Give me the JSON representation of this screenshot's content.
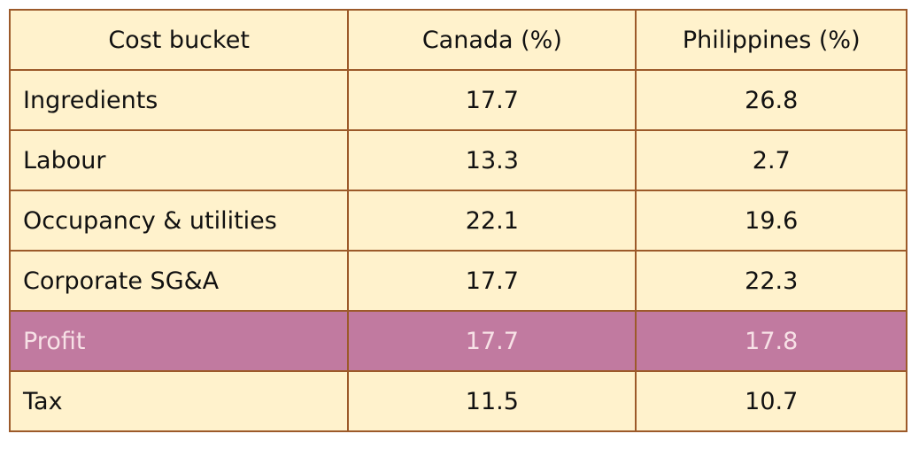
{
  "table": {
    "header": [
      "Cost bucket",
      "Canada (%)",
      "Philippines (%)"
    ],
    "rows": [
      [
        "Ingredients",
        17.7,
        26.8
      ],
      [
        "Labour",
        13.3,
        2.7
      ],
      [
        "Occupancy & utilities",
        22.1,
        19.6
      ],
      [
        "Corporate SG&A",
        17.7,
        22.3
      ],
      [
        "Profit",
        17.7,
        17.8
      ],
      [
        "Tax",
        11.5,
        10.7
      ]
    ]
  }
}
